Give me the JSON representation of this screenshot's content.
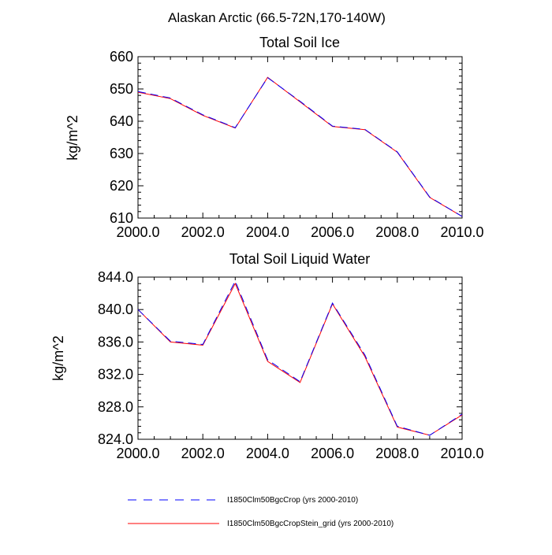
{
  "figure": {
    "title": "Alaskan Arctic (66.5-72N,170-140W)"
  },
  "legend": [
    {
      "label": "I1850Clm50BgcCrop (yrs 2000-2010)",
      "color": "#0000ff",
      "dash": true
    },
    {
      "label": "I1850Clm50BgcCropStein_grid (yrs 2000-2010)",
      "color": "#ff0000",
      "dash": false
    }
  ],
  "chart_data": [
    {
      "type": "line",
      "title": "Total Soil Ice",
      "xlabel": "",
      "ylabel": "kg/m^2",
      "x": [
        2000,
        2001,
        2002,
        2003,
        2004,
        2005,
        2006,
        2007,
        2008,
        2009,
        2010
      ],
      "xlim": [
        2000,
        2010
      ],
      "ylim": [
        610,
        660
      ],
      "xticks": [
        2000,
        2002,
        2004,
        2006,
        2008,
        2010
      ],
      "xtick_labels": [
        "2000.0",
        "2002.0",
        "2004.0",
        "2006.0",
        "2008.0",
        "2010.0"
      ],
      "yticks": [
        610,
        620,
        630,
        640,
        650,
        660
      ],
      "ytick_labels": [
        "610",
        "620",
        "630",
        "640",
        "650",
        "660"
      ],
      "series": [
        {
          "name": "I1850Clm50BgcCrop (yrs 2000-2010)",
          "color": "#0000ff",
          "dash": true,
          "values": [
            649.2,
            647.2,
            642.0,
            638.0,
            653.5,
            646.2,
            638.5,
            637.5,
            630.5,
            616.5,
            610.5
          ]
        },
        {
          "name": "I1850Clm50BgcCropStein_grid (yrs 2000-2010)",
          "color": "#ff0000",
          "dash": false,
          "values": [
            649.0,
            647.0,
            641.8,
            637.9,
            653.6,
            646.0,
            638.4,
            637.4,
            630.4,
            616.4,
            610.5
          ]
        }
      ]
    },
    {
      "type": "line",
      "title": "Total Soil Liquid Water",
      "xlabel": "",
      "ylabel": "kg/m^2",
      "x": [
        2000,
        2001,
        2002,
        2003,
        2004,
        2005,
        2006,
        2007,
        2008,
        2009,
        2010
      ],
      "xlim": [
        2000,
        2010
      ],
      "ylim": [
        824,
        844
      ],
      "xticks": [
        2000,
        2002,
        2004,
        2006,
        2008,
        2010
      ],
      "xtick_labels": [
        "2000.0",
        "2002.0",
        "2004.0",
        "2006.0",
        "2008.0",
        "2010.0"
      ],
      "yticks": [
        824,
        828,
        832,
        836,
        840,
        844
      ],
      "ytick_labels": [
        "824.0",
        "828.0",
        "832.0",
        "836.0",
        "840.0",
        "844.0"
      ],
      "series": [
        {
          "name": "I1850Clm50BgcCrop (yrs 2000-2010)",
          "color": "#0000ff",
          "dash": true,
          "values": [
            840.0,
            836.1,
            835.7,
            843.5,
            833.8,
            831.1,
            840.8,
            834.4,
            825.6,
            824.5,
            827.1
          ]
        },
        {
          "name": "I1850Clm50BgcCropStein_grid (yrs 2000-2010)",
          "color": "#ff0000",
          "dash": false,
          "values": [
            840.0,
            836.0,
            835.6,
            843.2,
            833.6,
            831.0,
            840.7,
            834.2,
            825.5,
            824.5,
            827.0
          ]
        }
      ]
    }
  ]
}
